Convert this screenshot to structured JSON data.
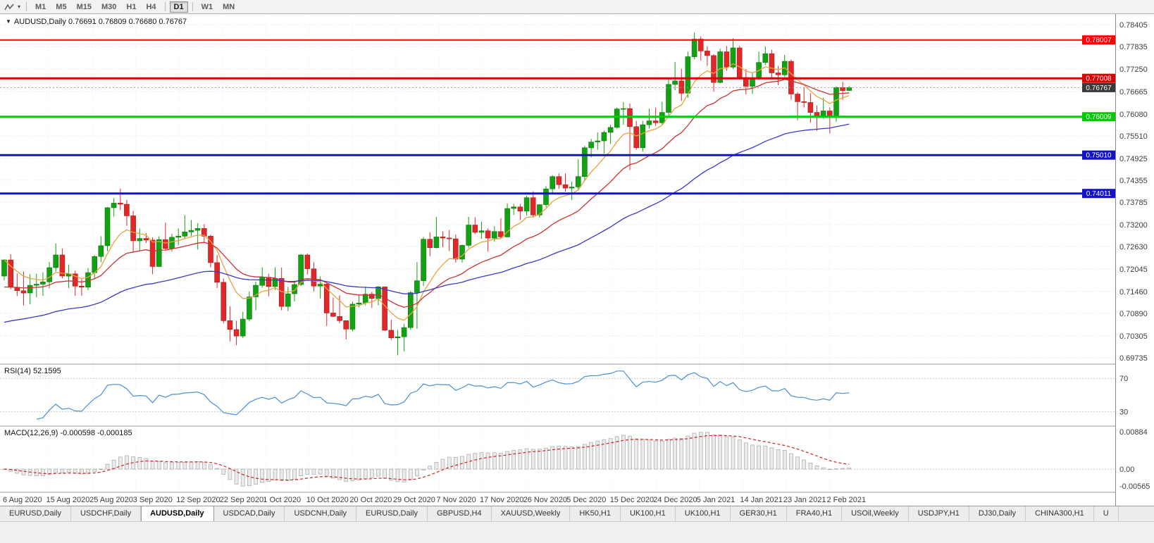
{
  "toolbar": {
    "timeframes": [
      "M1",
      "M5",
      "M15",
      "M30",
      "H1",
      "H4",
      "D1",
      "W1",
      "MN"
    ],
    "active_timeframe": "D1"
  },
  "chart": {
    "title": "AUDUSD,Daily",
    "ohlc_line": "0.76691 0.76809 0.76680 0.76767"
  },
  "rsi_header": "RSI(14) 52.1595",
  "macd_header": "MACD(12,26,9) -0.000598 -0.000185",
  "chart_data": {
    "type": "candlestick",
    "symbol": "AUDUSD",
    "timeframe": "Daily",
    "current": {
      "open": 0.76691,
      "high": 0.76809,
      "low": 0.7668,
      "close": 0.76767
    },
    "y_axis_labels": [
      "0.78405",
      "0.77835",
      "0.77250",
      "0.76665",
      "0.76080",
      "0.75510",
      "0.74925",
      "0.74355",
      "0.73785",
      "0.73200",
      "0.72630",
      "0.72045",
      "0.71460",
      "0.70890",
      "0.70305",
      "0.69735"
    ],
    "x_axis_labels": [
      "6 Aug 2020",
      "15 Aug 2020",
      "25 Aug 2020",
      "3 Sep 2020",
      "12 Sep 2020",
      "22 Sep 2020",
      "1 Oct 2020",
      "10 Oct 2020",
      "20 Oct 2020",
      "29 Oct 2020",
      "7 Nov 2020",
      "17 Nov 2020",
      "26 Nov 2020",
      "5 Dec 2020",
      "15 Dec 2020",
      "24 Dec 2020",
      "5 Jan 2021",
      "14 Jan 2021",
      "23 Jan 2021",
      "2 Feb 2021"
    ],
    "rsi_axis_labels": [
      "70",
      "30"
    ],
    "macd_axis_labels": [
      "0.00884",
      "0.00",
      "-0.00565"
    ],
    "hlines": [
      {
        "price": 0.78007,
        "label": "0.78007",
        "color": "#FF0000",
        "width": 2
      },
      {
        "price": 0.77008,
        "label": "0.77008",
        "color": "#DD0000",
        "width": 3
      },
      {
        "price": 0.76009,
        "label": "0.76009",
        "color": "#00CC00",
        "width": 3
      },
      {
        "price": 0.7501,
        "label": "0.75010",
        "color": "#1212CC",
        "width": 3
      },
      {
        "price": 0.74011,
        "label": "0.74011",
        "color": "#1212CC",
        "width": 3
      }
    ],
    "bid": {
      "price": 0.76767,
      "label": "0.76767",
      "color": "#3A3A3A"
    },
    "indicators": {
      "moving_averages": [
        {
          "period": 8,
          "color": "#E8A33D",
          "seed": null
        },
        {
          "period": 20,
          "color": "#D03030",
          "seed": 0.715
        },
        {
          "period": 55,
          "color": "#3A3AC8",
          "seed": 0.706
        }
      ],
      "rsi": {
        "period": 14,
        "color": "#4A8FD6",
        "levels": [
          70,
          30
        ]
      },
      "macd": {
        "fast": 12,
        "slow": 26,
        "signal": 9,
        "histogram_color": "#EBEBEB",
        "signal_color": "#D42020"
      }
    },
    "ohlc": [
      [
        0.7186,
        0.723,
        0.7175,
        0.7228
      ],
      [
        0.7228,
        0.7243,
        0.7152,
        0.7157
      ],
      [
        0.7157,
        0.7193,
        0.7134,
        0.7148
      ],
      [
        0.7148,
        0.7198,
        0.711,
        0.7142
      ],
      [
        0.7142,
        0.7191,
        0.7113,
        0.7162
      ],
      [
        0.7162,
        0.7192,
        0.7131,
        0.7165
      ],
      [
        0.7165,
        0.7196,
        0.7135,
        0.7171
      ],
      [
        0.7171,
        0.7223,
        0.7154,
        0.7208
      ],
      [
        0.7208,
        0.7271,
        0.7198,
        0.7241
      ],
      [
        0.7241,
        0.7258,
        0.718,
        0.7186
      ],
      [
        0.7186,
        0.7216,
        0.7155,
        0.7192
      ],
      [
        0.7192,
        0.72,
        0.7135,
        0.716
      ],
      [
        0.716,
        0.7178,
        0.7135,
        0.7157
      ],
      [
        0.7157,
        0.7207,
        0.7149,
        0.7195
      ],
      [
        0.7195,
        0.724,
        0.7178,
        0.7237
      ],
      [
        0.7237,
        0.729,
        0.7222,
        0.7265
      ],
      [
        0.7265,
        0.7366,
        0.7251,
        0.7364
      ],
      [
        0.7364,
        0.7389,
        0.7341,
        0.7376
      ],
      [
        0.7376,
        0.7414,
        0.7358,
        0.7373
      ],
      [
        0.7373,
        0.7385,
        0.7317,
        0.7343
      ],
      [
        0.7343,
        0.7356,
        0.7247,
        0.7278
      ],
      [
        0.7278,
        0.731,
        0.7251,
        0.7284
      ],
      [
        0.7284,
        0.7298,
        0.7272,
        0.728
      ],
      [
        0.728,
        0.7287,
        0.7191,
        0.7211
      ],
      [
        0.7211,
        0.729,
        0.721,
        0.7281
      ],
      [
        0.7281,
        0.7325,
        0.7253,
        0.7258
      ],
      [
        0.7258,
        0.7296,
        0.725,
        0.7287
      ],
      [
        0.7287,
        0.731,
        0.7266,
        0.729
      ],
      [
        0.729,
        0.7345,
        0.7283,
        0.7301
      ],
      [
        0.7301,
        0.7332,
        0.729,
        0.7305
      ],
      [
        0.7305,
        0.7324,
        0.7255,
        0.731
      ],
      [
        0.731,
        0.7321,
        0.7275,
        0.729
      ],
      [
        0.729,
        0.7294,
        0.7209,
        0.7221
      ],
      [
        0.7221,
        0.7241,
        0.7155,
        0.717
      ],
      [
        0.717,
        0.718,
        0.7063,
        0.707
      ],
      [
        0.707,
        0.7107,
        0.7016,
        0.7047
      ],
      [
        0.7047,
        0.707,
        0.7006,
        0.703
      ],
      [
        0.703,
        0.7093,
        0.7025,
        0.7074
      ],
      [
        0.7074,
        0.7146,
        0.7069,
        0.7132
      ],
      [
        0.7132,
        0.7172,
        0.7097,
        0.7162
      ],
      [
        0.7162,
        0.7209,
        0.7156,
        0.7183
      ],
      [
        0.7183,
        0.7192,
        0.7133,
        0.7159
      ],
      [
        0.7159,
        0.7209,
        0.715,
        0.718
      ],
      [
        0.718,
        0.7208,
        0.7097,
        0.7107
      ],
      [
        0.7107,
        0.7158,
        0.7095,
        0.714
      ],
      [
        0.714,
        0.7174,
        0.712,
        0.7164
      ],
      [
        0.7164,
        0.7243,
        0.716,
        0.7241
      ],
      [
        0.7241,
        0.7245,
        0.719,
        0.7205
      ],
      [
        0.7205,
        0.7222,
        0.7146,
        0.716
      ],
      [
        0.716,
        0.7185,
        0.7128,
        0.7165
      ],
      [
        0.7165,
        0.7167,
        0.7056,
        0.709
      ],
      [
        0.709,
        0.713,
        0.708,
        0.7081
      ],
      [
        0.7081,
        0.7136,
        0.7063,
        0.707
      ],
      [
        0.707,
        0.7071,
        0.7021,
        0.7048
      ],
      [
        0.7048,
        0.712,
        0.7042,
        0.7113
      ],
      [
        0.7113,
        0.7138,
        0.7105,
        0.7116
      ],
      [
        0.7116,
        0.7159,
        0.711,
        0.7139
      ],
      [
        0.7139,
        0.7145,
        0.7103,
        0.7128
      ],
      [
        0.7128,
        0.716,
        0.711,
        0.7158
      ],
      [
        0.7158,
        0.7159,
        0.7043,
        0.7045
      ],
      [
        0.7045,
        0.7072,
        0.702,
        0.7025
      ],
      [
        0.7025,
        0.7046,
        0.698,
        0.7028
      ],
      [
        0.7028,
        0.7062,
        0.699,
        0.7052
      ],
      [
        0.7052,
        0.7147,
        0.7046,
        0.7143
      ],
      [
        0.7143,
        0.7222,
        0.7049,
        0.7174
      ],
      [
        0.7174,
        0.7288,
        0.716,
        0.7282
      ],
      [
        0.7282,
        0.73,
        0.7238,
        0.726
      ],
      [
        0.726,
        0.734,
        0.7258,
        0.7288
      ],
      [
        0.7288,
        0.7302,
        0.7261,
        0.7285
      ],
      [
        0.7285,
        0.7306,
        0.7251,
        0.7283
      ],
      [
        0.7283,
        0.7294,
        0.7221,
        0.723
      ],
      [
        0.723,
        0.7268,
        0.7221,
        0.7266
      ],
      [
        0.7266,
        0.734,
        0.726,
        0.7319
      ],
      [
        0.7319,
        0.7339,
        0.7295,
        0.73
      ],
      [
        0.73,
        0.7327,
        0.7283,
        0.7304
      ],
      [
        0.7304,
        0.731,
        0.725,
        0.7285
      ],
      [
        0.7285,
        0.7316,
        0.7276,
        0.7302
      ],
      [
        0.7302,
        0.7337,
        0.7283,
        0.7288
      ],
      [
        0.7288,
        0.7375,
        0.7287,
        0.7362
      ],
      [
        0.7362,
        0.7374,
        0.7345,
        0.7366
      ],
      [
        0.7366,
        0.7374,
        0.7332,
        0.7355
      ],
      [
        0.7355,
        0.7395,
        0.7344,
        0.739
      ],
      [
        0.739,
        0.7407,
        0.7338,
        0.7345
      ],
      [
        0.7345,
        0.7373,
        0.7338,
        0.7372
      ],
      [
        0.7372,
        0.742,
        0.7365,
        0.7413
      ],
      [
        0.7413,
        0.7449,
        0.74,
        0.7445
      ],
      [
        0.7445,
        0.7453,
        0.7413,
        0.7424
      ],
      [
        0.7424,
        0.7453,
        0.7406,
        0.7415
      ],
      [
        0.7415,
        0.7432,
        0.7384,
        0.7418
      ],
      [
        0.7418,
        0.749,
        0.741,
        0.7445
      ],
      [
        0.7445,
        0.7525,
        0.7434,
        0.752
      ],
      [
        0.752,
        0.7543,
        0.7495,
        0.7535
      ],
      [
        0.7535,
        0.756,
        0.7515,
        0.7538
      ],
      [
        0.7538,
        0.7565,
        0.7505,
        0.756
      ],
      [
        0.756,
        0.758,
        0.753,
        0.7573
      ],
      [
        0.7573,
        0.7625,
        0.757,
        0.7621
      ],
      [
        0.7621,
        0.7639,
        0.758,
        0.7622
      ],
      [
        0.7622,
        0.7635,
        0.7462,
        0.7575
      ],
      [
        0.7575,
        0.759,
        0.7515,
        0.752
      ],
      [
        0.752,
        0.759,
        0.751,
        0.758
      ],
      [
        0.758,
        0.7622,
        0.757,
        0.759
      ],
      [
        0.759,
        0.7624,
        0.7577,
        0.7585
      ],
      [
        0.7585,
        0.764,
        0.758,
        0.7612
      ],
      [
        0.7612,
        0.77,
        0.7605,
        0.7685
      ],
      [
        0.7685,
        0.7743,
        0.767,
        0.7694
      ],
      [
        0.7694,
        0.7726,
        0.7642,
        0.7662
      ],
      [
        0.7662,
        0.777,
        0.765,
        0.7757
      ],
      [
        0.7757,
        0.782,
        0.775,
        0.7803
      ],
      [
        0.7803,
        0.781,
        0.7747,
        0.7772
      ],
      [
        0.7772,
        0.7784,
        0.7733,
        0.776
      ],
      [
        0.776,
        0.7763,
        0.7666,
        0.769
      ],
      [
        0.769,
        0.7778,
        0.7688,
        0.777
      ],
      [
        0.777,
        0.7785,
        0.772,
        0.773
      ],
      [
        0.773,
        0.7805,
        0.7725,
        0.778
      ],
      [
        0.778,
        0.7785,
        0.77,
        0.7703
      ],
      [
        0.7703,
        0.7725,
        0.7659,
        0.768
      ],
      [
        0.768,
        0.7714,
        0.766,
        0.77
      ],
      [
        0.77,
        0.777,
        0.7697,
        0.7742
      ],
      [
        0.7742,
        0.7784,
        0.7735,
        0.7765
      ],
      [
        0.7765,
        0.7775,
        0.7698,
        0.7715
      ],
      [
        0.7715,
        0.7733,
        0.7683,
        0.771
      ],
      [
        0.771,
        0.7762,
        0.7705,
        0.7745
      ],
      [
        0.7745,
        0.775,
        0.7645,
        0.766
      ],
      [
        0.766,
        0.7665,
        0.7592,
        0.764
      ],
      [
        0.764,
        0.7678,
        0.7625,
        0.7638
      ],
      [
        0.7638,
        0.7662,
        0.7585,
        0.7612
      ],
      [
        0.7612,
        0.763,
        0.7564,
        0.7603
      ],
      [
        0.7603,
        0.765,
        0.7596,
        0.7616
      ],
      [
        0.7616,
        0.7625,
        0.7557,
        0.76
      ],
      [
        0.76,
        0.768,
        0.7588,
        0.7677
      ],
      [
        0.7677,
        0.7692,
        0.7645,
        0.7669
      ],
      [
        0.76691,
        0.76809,
        0.7668,
        0.76767
      ]
    ]
  },
  "tabs": {
    "active_index": 2,
    "items": [
      "EURUSD,Daily",
      "USDCHF,Daily",
      "AUDUSD,Daily",
      "USDCAD,Daily",
      "USDCNH,Daily",
      "EURUSD,Daily",
      "GBPUSD,H4",
      "XAUUSD,Weekly",
      "HK50,H1",
      "UK100,H1",
      "UK100,H1",
      "GER30,H1",
      "FRA40,H1",
      "USOil,Weekly",
      "USDJPY,H1",
      "DJ30,Daily",
      "CHINA300,H1",
      "U"
    ]
  }
}
